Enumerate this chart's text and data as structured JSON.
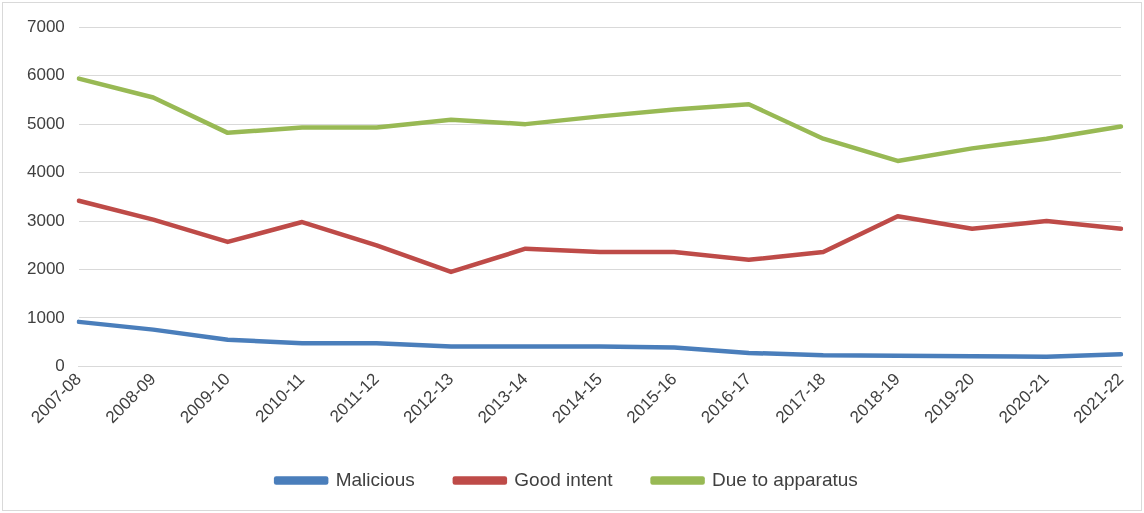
{
  "chart_data": {
    "type": "line",
    "categories": [
      "2007-08",
      "2008-09",
      "2009-10",
      "2010-11",
      "2011-12",
      "2012-13",
      "2013-14",
      "2014-15",
      "2015-16",
      "2016-17",
      "2017-18",
      "2018-19",
      "2019-20",
      "2020-21",
      "2021-22"
    ],
    "series": [
      {
        "name": "Malicious",
        "color": "#4a7ebb",
        "values": [
          920,
          760,
          550,
          480,
          480,
          410,
          410,
          410,
          390,
          280,
          230,
          220,
          210,
          200,
          250
        ]
      },
      {
        "name": "Good intent",
        "color": "#be4b48",
        "values": [
          3420,
          3030,
          2570,
          2980,
          2500,
          1950,
          2430,
          2360,
          2360,
          2200,
          2360,
          3100,
          2840,
          3000,
          2840
        ]
      },
      {
        "name": "Due to apparatus",
        "color": "#98b954",
        "values": [
          5940,
          5550,
          4820,
          4930,
          4930,
          5090,
          5000,
          5160,
          5300,
          5410,
          4700,
          4240,
          4500,
          4700,
          4950
        ]
      }
    ],
    "ylim": [
      0,
      7000
    ],
    "yticks": [
      0,
      1000,
      2000,
      3000,
      4000,
      5000,
      6000,
      7000
    ],
    "grid": "y",
    "legend": "bottom",
    "marker": "none",
    "line_style": "solid"
  }
}
